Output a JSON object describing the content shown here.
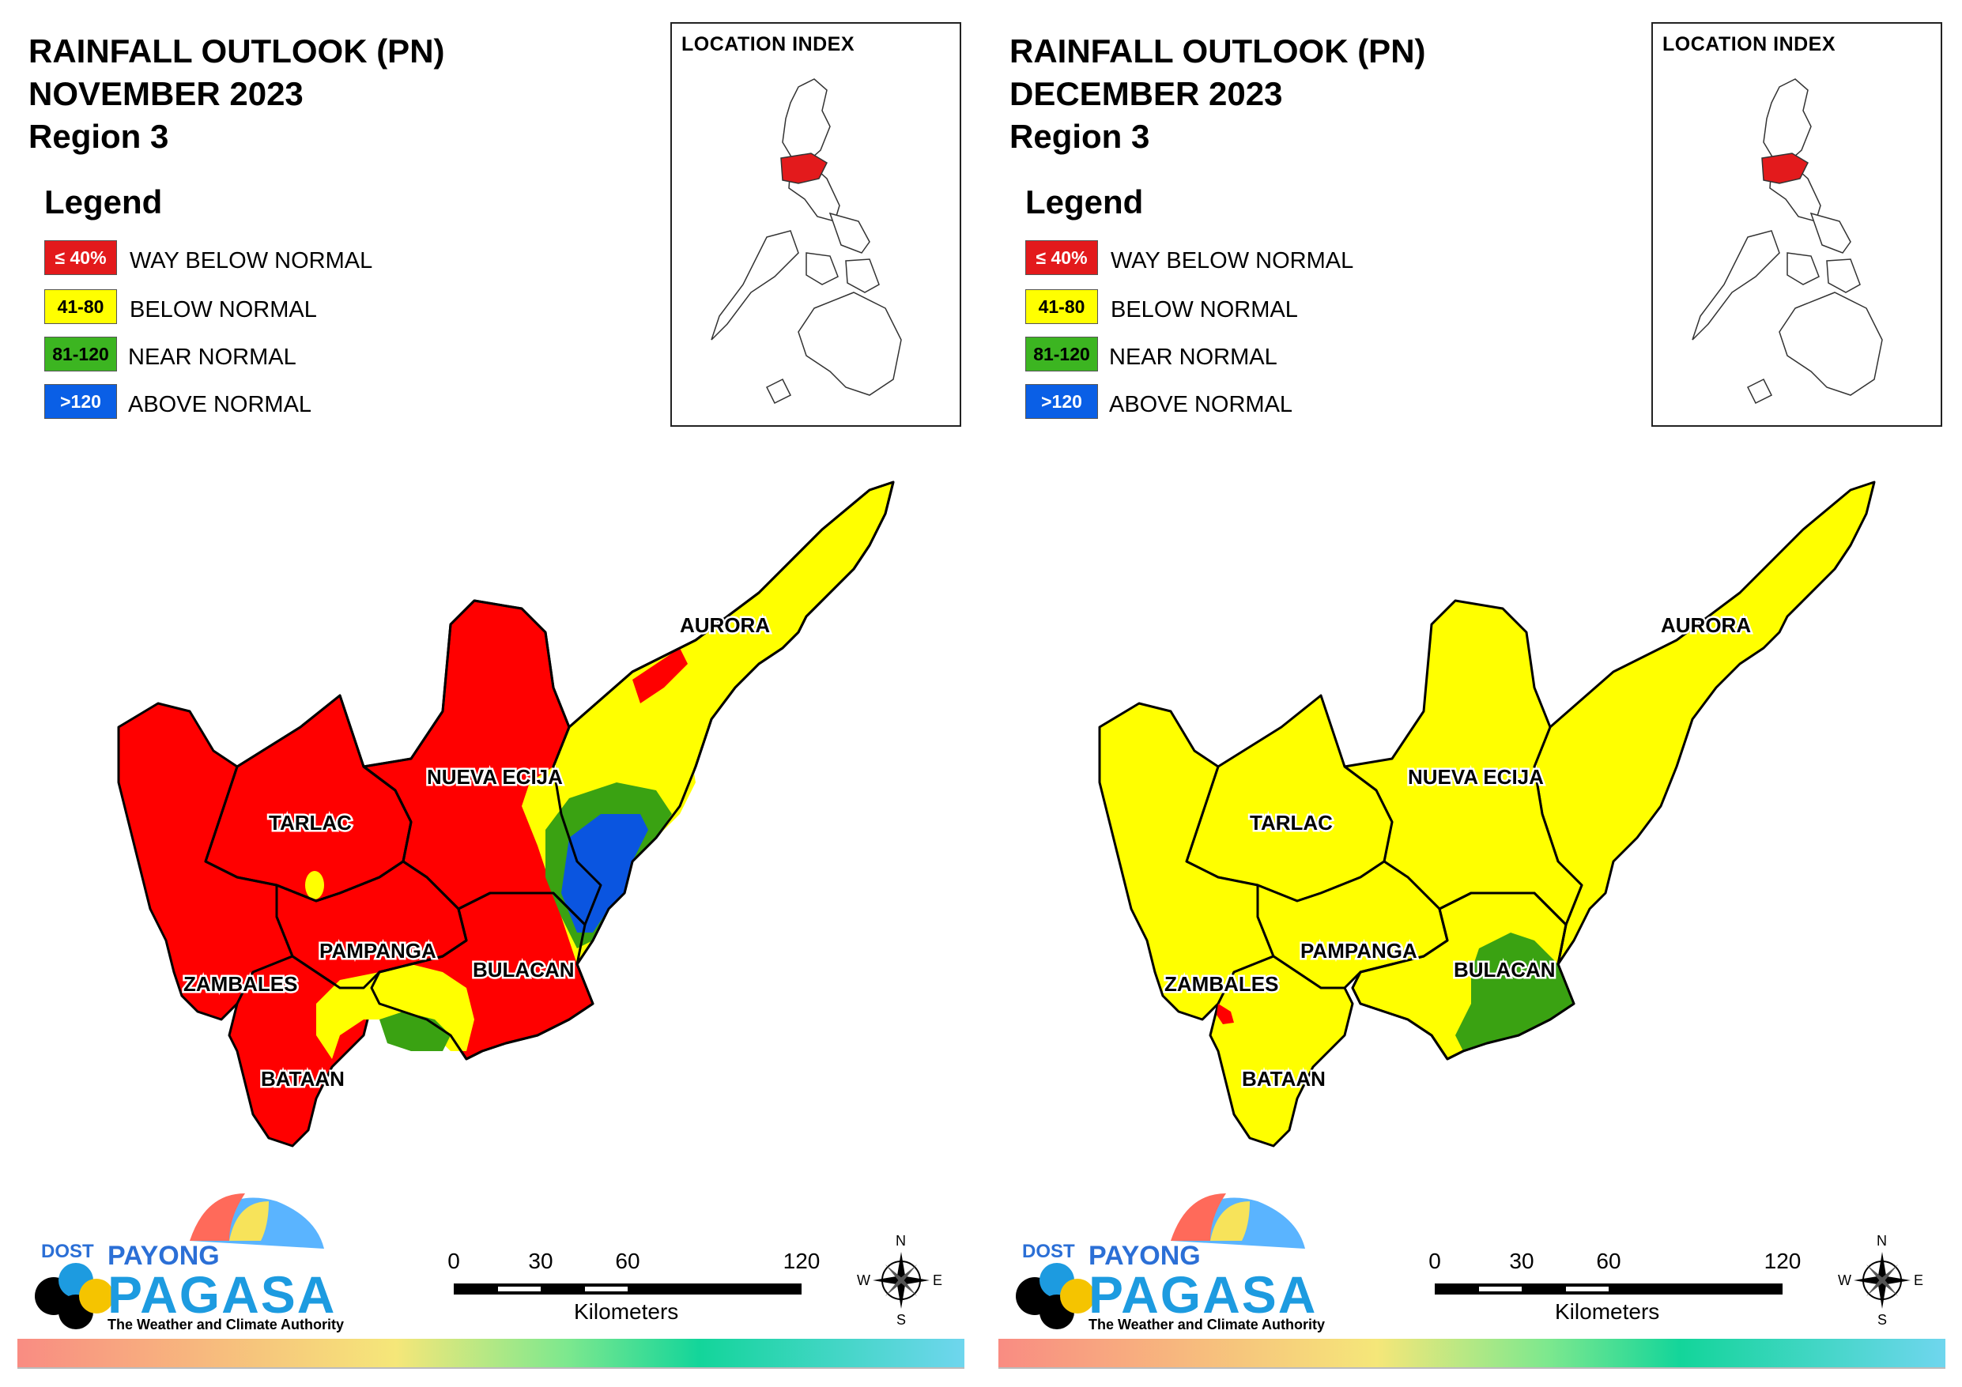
{
  "panels": [
    {
      "title_line1": "RAINFALL OUTLOOK (PN)",
      "title_line2": "NOVEMBER 2023",
      "title_line3": "Region 3",
      "location_index_label": "LOCATION INDEX",
      "region_colors": {
        "tarlac": "#ff0000",
        "nueva_ecija": "#ff0000",
        "aurora": "#ffff00",
        "zambales": "#ff0000",
        "pampanga": "#ff0000",
        "bulacan": "#ff0000",
        "bataan": "#ff0000"
      },
      "overlays": "november"
    },
    {
      "title_line1": "RAINFALL OUTLOOK (PN)",
      "title_line2": "DECEMBER 2023",
      "title_line3": "Region 3",
      "location_index_label": "LOCATION INDEX",
      "region_colors": {
        "tarlac": "#ffff00",
        "nueva_ecija": "#ffff00",
        "aurora": "#ffff00",
        "zambales": "#ffff00",
        "pampanga": "#ffff00",
        "bulacan": "#ffff00",
        "bataan": "#ffff00"
      },
      "overlays": "december"
    }
  ],
  "legend": {
    "heading": "Legend",
    "items": [
      {
        "range": "≤ 40%",
        "label": "WAY BELOW NORMAL",
        "color": "#e31a1c",
        "text_color": "#ffffff"
      },
      {
        "range": "41-80",
        "label": "BELOW NORMAL",
        "color": "#ffff00",
        "text_color": "#000000"
      },
      {
        "range": "81-120",
        "label": "NEAR NORMAL",
        "color": "#3cb521",
        "text_color": "#000000"
      },
      {
        "range": ">120",
        "label": "ABOVE NORMAL",
        "color": "#0a5fe6",
        "text_color": "#ffffff"
      }
    ]
  },
  "provinces": {
    "aurora": "AURORA",
    "nueva_ecija": "NUEVA ECIJA",
    "tarlac": "TARLAC",
    "pampanga": "PAMPANGA",
    "bulacan": "BULACAN",
    "zambales": "ZAMBALES",
    "bataan": "BATAAN"
  },
  "logo": {
    "dost": "DOST",
    "payong": "PAYONG",
    "pagasa": "PAGASA",
    "tagline": "The Weather and Climate Authority"
  },
  "scale": {
    "ticks": [
      "0",
      "30",
      "60",
      "120"
    ],
    "unit": "Kilometers"
  },
  "compass": {
    "n": "N",
    "s": "S",
    "e": "E",
    "w": "W"
  },
  "colors": {
    "red": "#ff0000",
    "yellow": "#ffff00",
    "green": "#3aa212",
    "blue": "#0a55e0"
  }
}
